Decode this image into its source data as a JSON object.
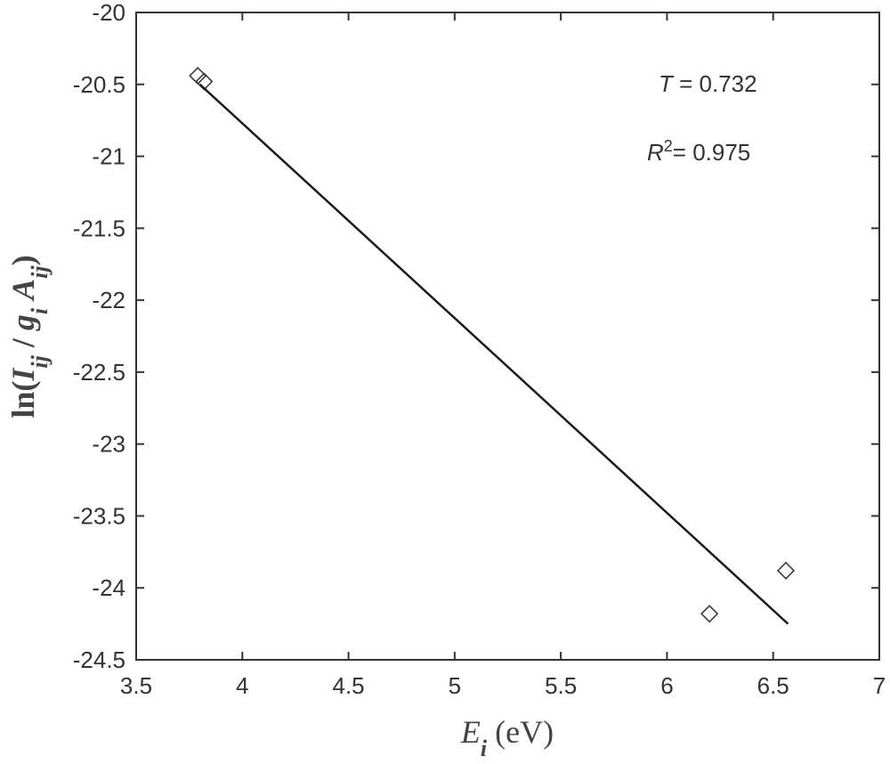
{
  "chart_data": {
    "type": "scatter",
    "xlabel": [
      "E",
      "i",
      " (eV)"
    ],
    "ylabel": [
      "ln(",
      "I",
      "ij",
      " / ",
      "g",
      "i",
      " ",
      "A",
      "ij",
      ")"
    ],
    "annotations": [
      [
        "T",
        " = 0.732"
      ],
      [
        "R",
        "2",
        "= 0.975"
      ]
    ],
    "series": [
      {
        "type": "scatter",
        "color": "#333333",
        "x": [
          3.79,
          3.82,
          6.2,
          6.56
        ],
        "values": [
          -20.44,
          -20.48,
          -24.18,
          -23.88
        ]
      },
      {
        "type": "line",
        "color": "#1a1a1a",
        "x": [
          3.8,
          6.57
        ],
        "values": [
          -20.5,
          -24.25
        ]
      }
    ],
    "xlim": [
      3.5,
      7
    ],
    "xticks": [
      3.5,
      4,
      4.5,
      5,
      5.5,
      6,
      6.5,
      7
    ],
    "ylim": [
      -24.5,
      -20
    ],
    "yticks": [
      -24.5,
      -24,
      -23.5,
      -23,
      -22.5,
      -22,
      -21.5,
      -21,
      -20.5,
      -20
    ]
  }
}
